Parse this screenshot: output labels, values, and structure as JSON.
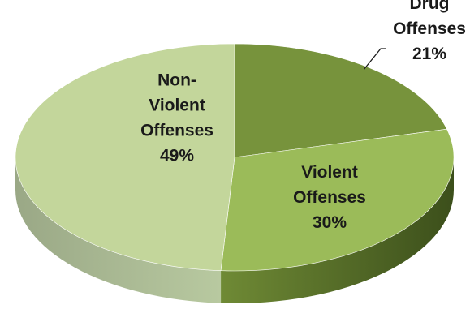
{
  "chart_data": {
    "type": "pie",
    "style": "3d",
    "slices": [
      {
        "label": "Drug Offenses",
        "value": 21,
        "value_label": "21%",
        "color": "#77933c",
        "label_placement": "outside",
        "label_lines": [
          "Drug",
          "Offenses",
          "21%"
        ]
      },
      {
        "label": "Violent Offenses",
        "value": 30,
        "value_label": "30%",
        "color": "#9bbb59",
        "label_placement": "inside",
        "label_lines": [
          "Violent",
          "Offenses",
          "30%"
        ]
      },
      {
        "label": "Non-Violent Offenses",
        "value": 49,
        "value_label": "49%",
        "color": "#c3d69b",
        "label_placement": "inside",
        "label_lines": [
          "Non-",
          "Violent",
          "Offenses",
          "49%"
        ]
      }
    ],
    "legend": "none",
    "grid": false
  }
}
